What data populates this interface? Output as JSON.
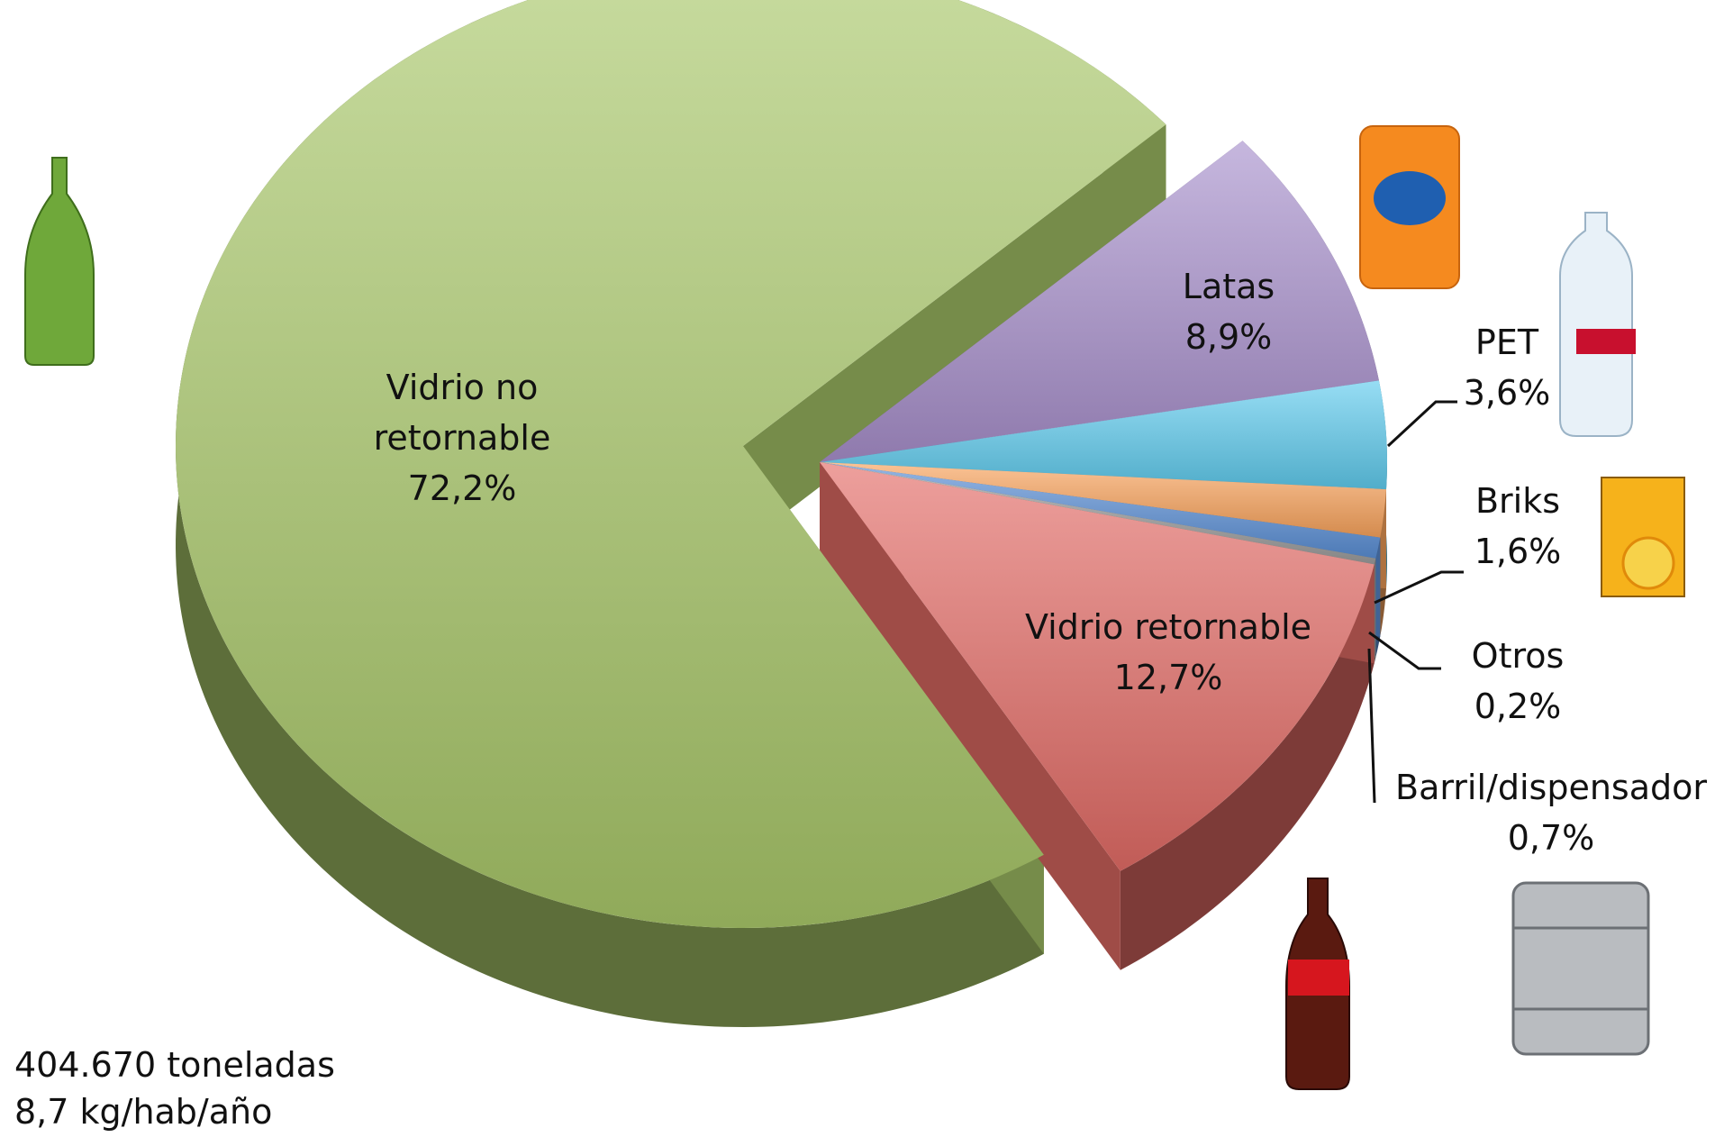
{
  "chart_data": {
    "type": "pie",
    "categories": [
      "Vidrio no retornable",
      "Latas",
      "PET",
      "Briks",
      "Barril/dispensador",
      "Otros",
      "Vidrio retornable"
    ],
    "values": [
      72.2,
      8.9,
      3.6,
      1.6,
      0.7,
      0.2,
      12.7
    ],
    "value_labels": [
      "72,2%",
      "8,9%",
      "3,6%",
      "1,6%",
      "0,7%",
      "0,2%",
      "12,7%"
    ],
    "colors": [
      "#a9c86a",
      "#a890cc",
      "#5fcbee",
      "#f9a35c",
      "#5b8fd6",
      "#9e9e9e",
      "#e36c66"
    ],
    "annotations": [
      "404.670 toneladas",
      "8,7 kg/hab/año"
    ]
  }
}
